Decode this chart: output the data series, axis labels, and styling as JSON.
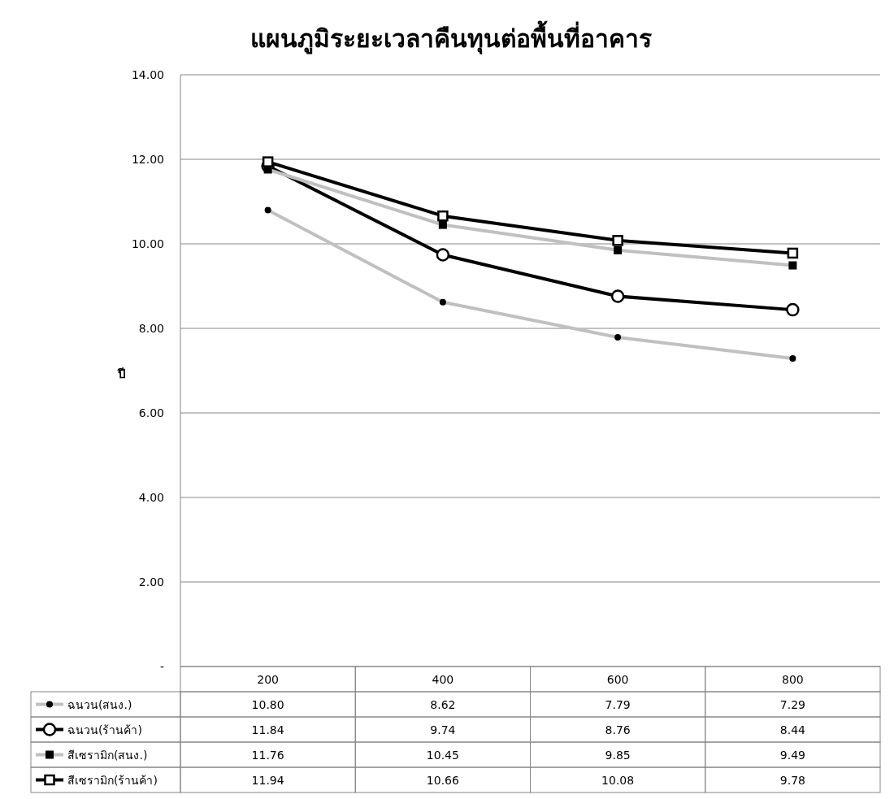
{
  "chart_data": {
    "type": "line",
    "title": "แผนภูมิระยะเวลาคืนทุนต่อพื้นที่อาคาร",
    "ylabel": "ปี",
    "categories": [
      "200",
      "400",
      "600",
      "800"
    ],
    "series": [
      {
        "name": "ฉนวน(สนง.)",
        "color": "#c0c0c0",
        "marker": "circle",
        "values": [
          10.8,
          8.62,
          7.79,
          7.29
        ],
        "value_labels": [
          "10.80",
          "8.62",
          "7.79",
          "7.29"
        ]
      },
      {
        "name": "ฉนวน(ร้านค้า)",
        "color": "#000000",
        "marker": "circle",
        "values": [
          11.84,
          9.74,
          8.76,
          8.44
        ],
        "value_labels": [
          "11.84",
          "9.74",
          "8.76",
          "8.44"
        ]
      },
      {
        "name": "สีเซรามิก(สนง.)",
        "color": "#c0c0c0",
        "marker": "square",
        "values": [
          11.76,
          10.45,
          9.85,
          9.49
        ],
        "value_labels": [
          "11.76",
          "10.45",
          "9.85",
          "9.49"
        ]
      },
      {
        "name": "สีเซรามิก(ร้านค้า)",
        "color": "#000000",
        "marker": "square",
        "values": [
          11.94,
          10.66,
          10.08,
          9.78
        ],
        "value_labels": [
          "11.94",
          "10.66",
          "10.08",
          "9.78"
        ]
      }
    ],
    "ylim": [
      0,
      14
    ],
    "yticks": [
      {
        "value": 0,
        "label": "-"
      },
      {
        "value": 2,
        "label": "2.00"
      },
      {
        "value": 4,
        "label": "4.00"
      },
      {
        "value": 6,
        "label": "6.00"
      },
      {
        "value": 8,
        "label": "8.00"
      },
      {
        "value": 10,
        "label": "10.00"
      },
      {
        "value": 12,
        "label": "12.00"
      },
      {
        "value": 14,
        "label": "14.00"
      }
    ],
    "grid": "y",
    "legend": "bottom"
  }
}
